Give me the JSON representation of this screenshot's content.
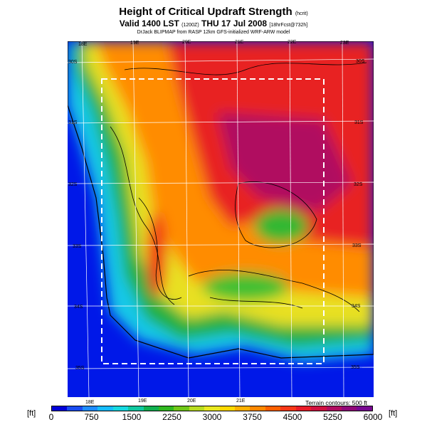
{
  "title": "Height of Critical Updraft Strength",
  "title_unit": "(hcrit)",
  "subtitle_main": "Valid 1400 LST",
  "subtitle_code": "(1200Z)",
  "subtitle_date": "THU 17 Jul 2008",
  "subtitle_tail": "[18hrFcst@732h]",
  "credit": "DrJack BLIPMAP from RASP 12km GFS-initialized WRF-ARW model",
  "terrain_note": "Terrain contours: 500 ft",
  "unit_label": "[ft]",
  "legend": {
    "ticks": [
      "0",
      "750",
      "1500",
      "2250",
      "3000",
      "3750",
      "4500",
      "5250",
      "6000"
    ],
    "colors": [
      "#0000d8",
      "#1a4cf0",
      "#1e8cff",
      "#16bcff",
      "#16d8e0",
      "#10c8a0",
      "#10b050",
      "#30b820",
      "#70c818",
      "#b8dc20",
      "#e8e820",
      "#ffd800",
      "#ffb000",
      "#ff8800",
      "#ff6000",
      "#f83818",
      "#e81c28",
      "#d01040",
      "#b00c60",
      "#900878",
      "#780890"
    ]
  },
  "lon_labels_top": [
    "18E",
    "19E",
    "20E",
    "21E",
    "22E",
    "23E"
  ],
  "lon_labels_bottom": [
    "18E",
    "19E",
    "20E",
    "21E"
  ],
  "lat_labels_left": [
    "30S",
    "31S",
    "32S",
    "33S",
    "34S",
    "35S"
  ],
  "lat_labels_right": [
    "30S",
    "31S",
    "32S",
    "33S",
    "34S",
    "35S"
  ]
}
